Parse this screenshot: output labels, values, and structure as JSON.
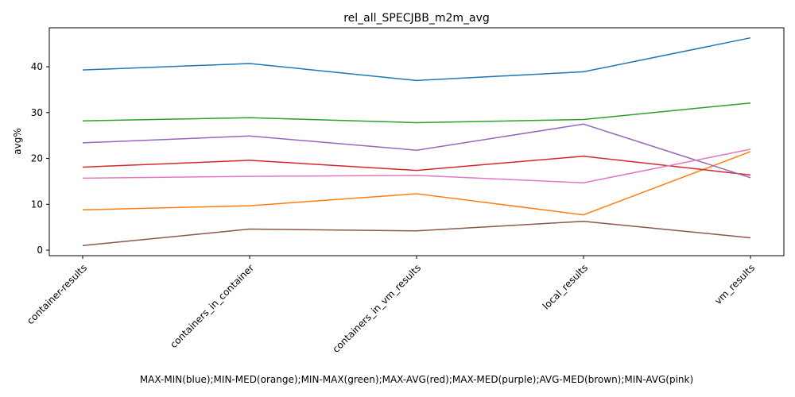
{
  "chart_data": {
    "type": "line",
    "title": "rel_all_SPECJBB_m2m_avg",
    "xlabel": "MAX-MIN(blue);MIN-MED(orange);MIN-MAX(green);MAX-AVG(red);MAX-MED(purple);AVG-MED(brown);MIN-AVG(pink)",
    "ylabel": "avg%",
    "categories": [
      "container-results",
      "containers_in_container",
      "containers_in_vm_results",
      "local_results",
      "vm_results"
    ],
    "ylim": [
      -1.2,
      48.5
    ],
    "yticks": [
      0,
      10,
      20,
      30,
      40
    ],
    "grid": false,
    "series": [
      {
        "color": "#1f77b4",
        "values": [
          39.3,
          40.7,
          37.0,
          38.9,
          46.3
        ]
      },
      {
        "color": "#ff7f0e",
        "values": [
          8.8,
          9.7,
          12.3,
          7.7,
          21.5
        ]
      },
      {
        "color": "#2ca02c",
        "values": [
          28.2,
          28.9,
          27.8,
          28.5,
          32.1
        ]
      },
      {
        "color": "#d62728",
        "values": [
          18.1,
          19.6,
          17.4,
          20.5,
          16.4
        ]
      },
      {
        "color": "#9467bd",
        "values": [
          23.4,
          24.9,
          21.8,
          27.5,
          15.8
        ]
      },
      {
        "color": "#8c564b",
        "values": [
          1.0,
          4.6,
          4.2,
          6.3,
          2.7
        ]
      },
      {
        "color": "#e377c2",
        "values": [
          15.7,
          16.1,
          16.3,
          14.7,
          22.0
        ]
      }
    ]
  }
}
